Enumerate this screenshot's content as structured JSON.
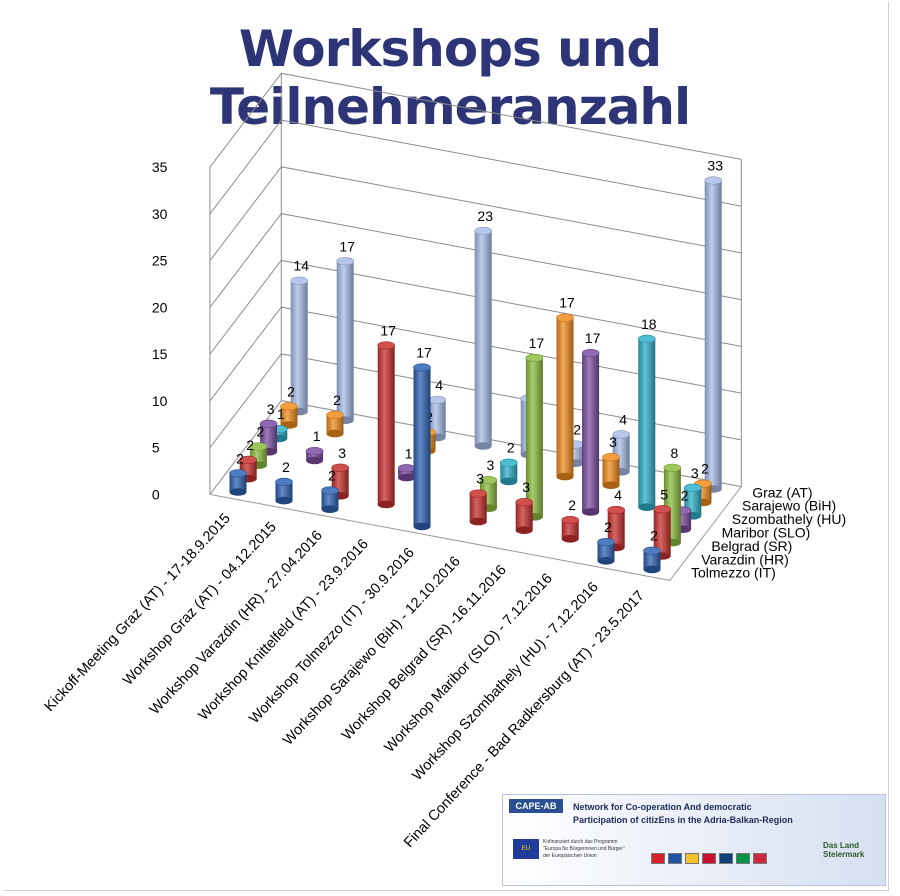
{
  "title": "Workshops und Teilnehmeranzahl",
  "chart_data": {
    "type": "bar",
    "style": "3d-cylinder",
    "title": "Workshops und Teilnehmeranzahl",
    "ylim": [
      0,
      35
    ],
    "yticks": [
      "0",
      "5",
      "10",
      "15",
      "20",
      "25",
      "30",
      "35"
    ],
    "grid": true,
    "categories": [
      "Kickoff-Meeting Graz (AT) - 17-18.9.2015",
      "Workshop Graz (AT) - 04.12.2015",
      "Workshop Varazdin (HR) - 27.04.2016",
      "Workshop Knittelfeld (AT) - 23.9.2016",
      "Workshop Tolmezzo (IT) - 30.9.2016",
      "Workshop Sarajewo (BiH) - 12.10.2016",
      "Workshop Belgrad (SR) -16.11.2016",
      "Workshop Maribor (SLO) - 7.12.2016",
      "Workshop Szombathely (HU) - 7.12.2016",
      "Final Conference - Bad Radkersburg (AT) - 23.5.2017"
    ],
    "series": [
      {
        "name": "Tolmezzo (IT)",
        "color": "#2f63b3",
        "values": [
          2,
          2,
          2,
          null,
          17,
          null,
          null,
          null,
          2,
          2
        ]
      },
      {
        "name": "Varazdin (HR)",
        "color": "#c8312f",
        "values": [
          2,
          null,
          3,
          17,
          null,
          3,
          3,
          2,
          4,
          5
        ]
      },
      {
        "name": "Belgrad (SR)",
        "color": "#8cbc3f",
        "values": [
          2,
          null,
          null,
          null,
          null,
          3,
          17,
          null,
          null,
          8
        ]
      },
      {
        "name": "Maribor (SLO)",
        "color": "#7d4fa2",
        "values": [
          3,
          1,
          null,
          1,
          null,
          null,
          null,
          17,
          null,
          2
        ]
      },
      {
        "name": "Szombathely (HU)",
        "color": "#2fb0c9",
        "values": [
          1,
          null,
          null,
          null,
          null,
          2,
          null,
          null,
          18,
          3
        ]
      },
      {
        "name": "Sarajewo (BiH)",
        "color": "#f08c1d",
        "values": [
          2,
          2,
          null,
          2,
          null,
          null,
          17,
          3,
          null,
          2
        ]
      },
      {
        "name": "Graz (AT)",
        "color": "#a9bde8",
        "values": [
          14,
          17,
          null,
          4,
          23,
          6,
          2,
          4,
          null,
          33
        ]
      }
    ],
    "legend_position": "right"
  },
  "footer": {
    "cape_label": "CAPE-AB",
    "network_line1": "Network for Co-operation And democratic",
    "network_line2": "Participation of citizEns in the Adria-Balkan-Region",
    "eu_text": "EU",
    "kofi_line1": "Kofinanziert durch das Programm",
    "kofi_line2": "\"Europa für Bürgerinnen und Bürger\"",
    "kofi_line3": "der Europäischen Union",
    "land_line1": "Das Land",
    "land_line2": "Steiermark",
    "flag_colors": [
      "#d8232a",
      "#2054a3",
      "#f2c12e",
      "#c8102e",
      "#0c4076",
      "#009246",
      "#cd2a3e"
    ]
  }
}
